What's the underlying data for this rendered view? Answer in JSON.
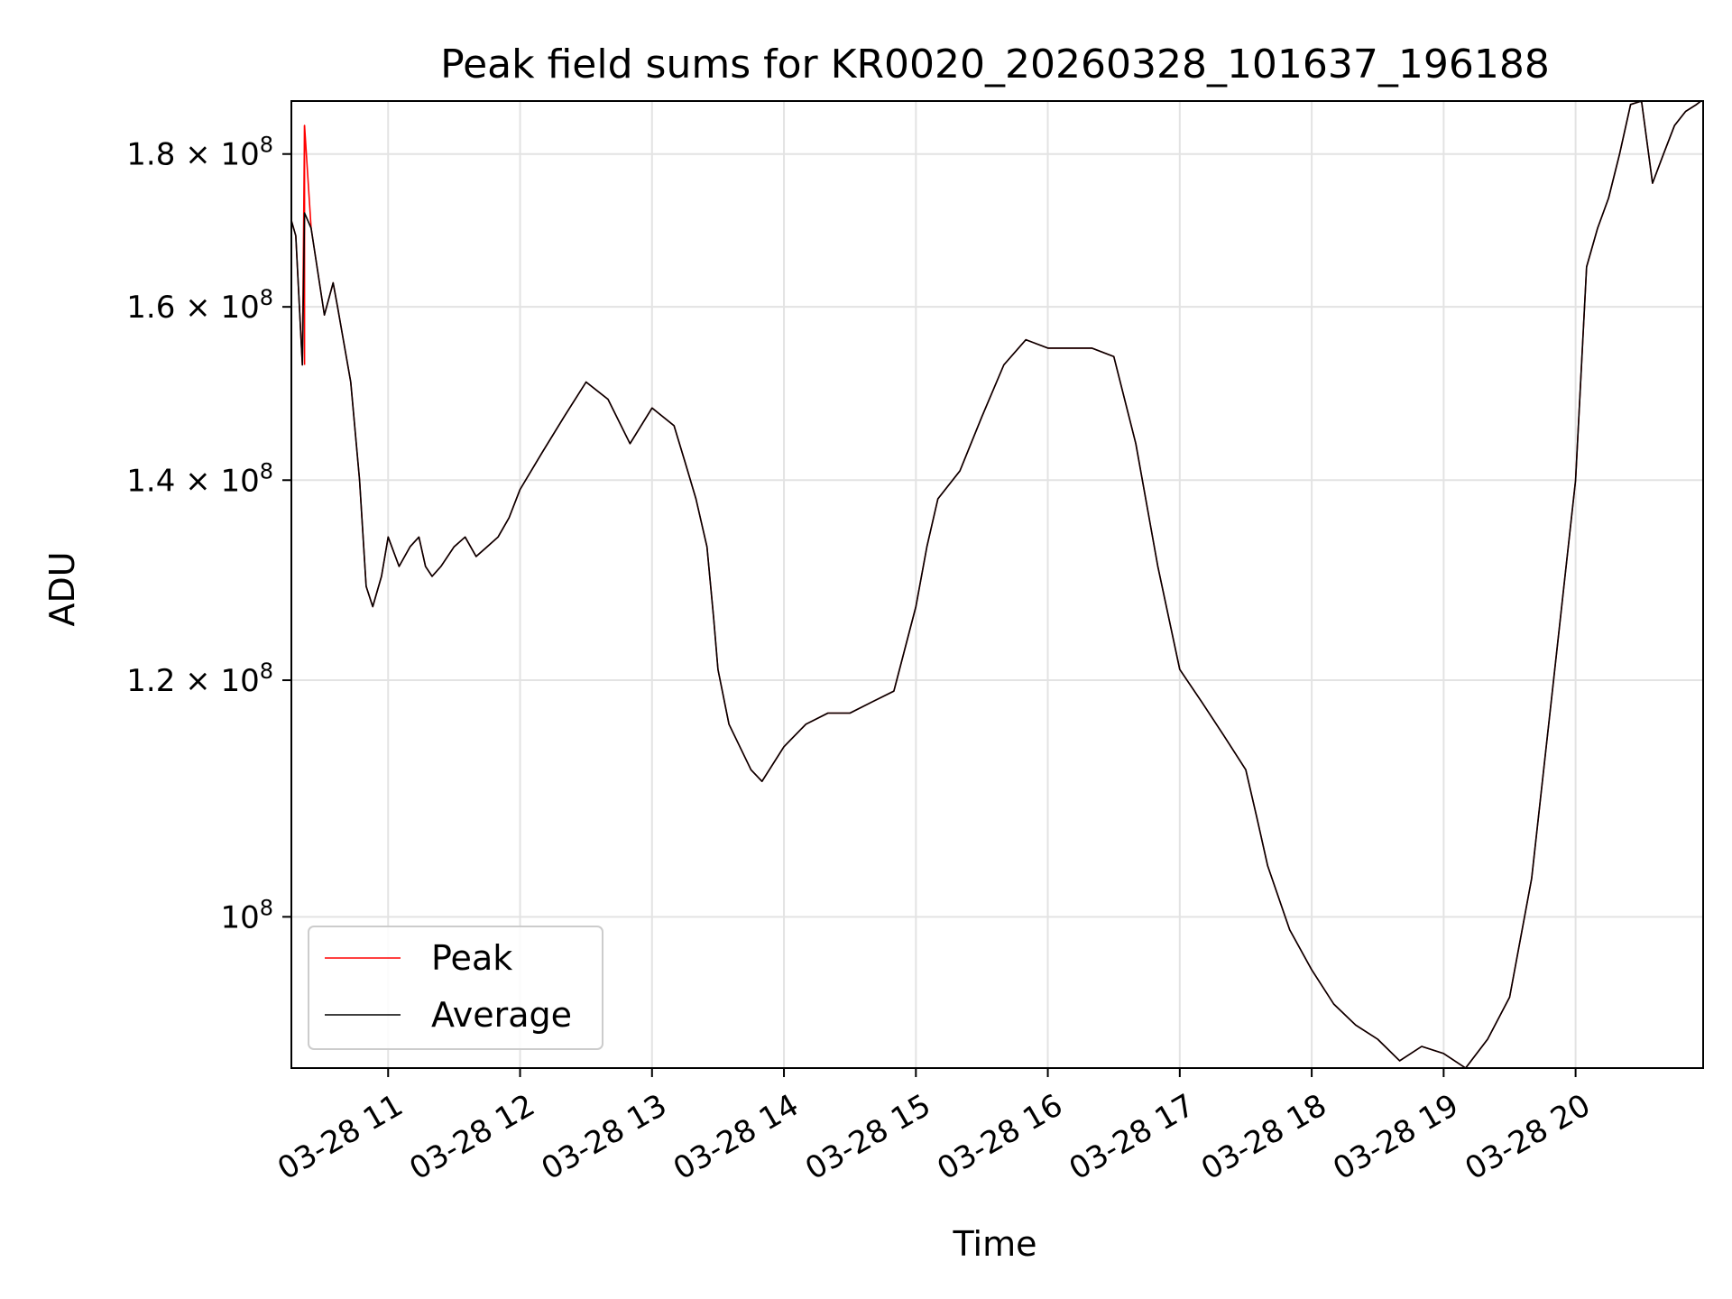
{
  "chart_data": {
    "type": "line",
    "title": "Peak field sums for KR0020_20260328_101637_196188",
    "xlabel": "Time",
    "ylabel": "ADU",
    "x_axis": {
      "kind": "time",
      "range": [
        "2026-03-28 10:16",
        "2026-03-28 20:58"
      ],
      "tick_labels": [
        "03-28 11",
        "03-28 12",
        "03-28 13",
        "03-28 14",
        "03-28 15",
        "03-28 16",
        "03-28 17",
        "03-28 18",
        "03-28 19",
        "03-28 20"
      ]
    },
    "y_axis": {
      "scale": "log",
      "range": [
        89000000,
        187500000
      ],
      "tick_labels": [
        "1.2 × 10^8",
        "1.4 × 10^8",
        "1.6 × 10^8",
        "1.8 × 10^8",
        "10^8"
      ]
    },
    "grid": true,
    "legend": {
      "placement": "lower-left",
      "entries": [
        "Peak",
        "Average"
      ]
    },
    "series": [
      {
        "name": "Peak",
        "color": "#ff0000",
        "x": [
          "2026-03-28 10:16",
          "2026-03-28 10:18",
          "2026-03-28 10:21",
          "2026-03-28 10:22",
          "2026-03-28 10:25",
          "2026-03-28 10:31",
          "2026-03-28 10:35",
          "2026-03-28 10:37",
          "2026-03-28 10:43",
          "2026-03-28 10:47",
          "2026-03-28 10:50",
          "2026-03-28 10:53",
          "2026-03-28 10:57",
          "2026-03-28 11:00",
          "2026-03-28 11:05",
          "2026-03-28 11:10",
          "2026-03-28 11:14",
          "2026-03-28 11:17",
          "2026-03-28 11:20",
          "2026-03-28 11:24",
          "2026-03-28 11:30",
          "2026-03-28 11:35",
          "2026-03-28 11:40",
          "2026-03-28 11:45",
          "2026-03-28 11:50",
          "2026-03-28 11:55",
          "2026-03-28 12:00",
          "2026-03-28 12:10",
          "2026-03-28 12:20",
          "2026-03-28 12:30",
          "2026-03-28 12:40",
          "2026-03-28 12:50",
          "2026-03-28 13:00",
          "2026-03-28 13:10",
          "2026-03-28 13:15",
          "2026-03-28 13:20",
          "2026-03-28 13:25",
          "2026-03-28 13:28",
          "2026-03-28 13:30",
          "2026-03-28 13:35",
          "2026-03-28 13:45",
          "2026-03-28 13:50",
          "2026-03-28 14:00",
          "2026-03-28 14:10",
          "2026-03-28 14:20",
          "2026-03-28 14:30",
          "2026-03-28 14:40",
          "2026-03-28 14:50",
          "2026-03-28 15:00",
          "2026-03-28 15:05",
          "2026-03-28 15:10",
          "2026-03-28 15:20",
          "2026-03-28 15:30",
          "2026-03-28 15:40",
          "2026-03-28 15:50",
          "2026-03-28 16:00",
          "2026-03-28 16:10",
          "2026-03-28 16:20",
          "2026-03-28 16:30",
          "2026-03-28 16:40",
          "2026-03-28 16:50",
          "2026-03-28 17:00",
          "2026-03-28 17:10",
          "2026-03-28 17:20",
          "2026-03-28 17:30",
          "2026-03-28 17:35",
          "2026-03-28 17:40",
          "2026-03-28 17:50",
          "2026-03-28 18:00",
          "2026-03-28 18:10",
          "2026-03-28 18:20",
          "2026-03-28 18:30",
          "2026-03-28 18:40",
          "2026-03-28 18:50",
          "2026-03-28 19:00",
          "2026-03-28 19:10",
          "2026-03-28 19:20",
          "2026-03-28 19:30",
          "2026-03-28 19:40",
          "2026-03-28 19:50",
          "2026-03-28 20:00",
          "2026-03-28 20:05",
          "2026-03-28 20:10",
          "2026-03-28 20:15",
          "2026-03-28 20:20",
          "2026-03-28 20:25",
          "2026-03-28 20:30",
          "2026-03-28 20:35",
          "2026-03-28 20:40",
          "2026-03-28 20:45",
          "2026-03-28 20:50",
          "2026-03-28 20:55",
          "2026-03-28 20:57"
        ],
        "y": [
          171000000,
          169000000,
          153000000,
          184000000,
          170000000,
          159000000,
          163000000,
          160000000,
          151000000,
          140000000,
          129000000,
          127000000,
          130000000,
          134000000,
          131000000,
          133000000,
          134000000,
          131000000,
          130000000,
          131000000,
          133000000,
          134000000,
          132000000,
          133000000,
          134000000,
          136000000,
          139000000,
          143000000,
          147000000,
          151000000,
          149000000,
          144000000,
          148000000,
          146000000,
          142000000,
          138000000,
          133000000,
          126000000,
          121000000,
          116000000,
          112000000,
          111000000,
          114000000,
          116000000,
          117000000,
          117000000,
          118000000,
          119000000,
          127000000,
          133000000,
          138000000,
          141000000,
          147000000,
          153000000,
          156000000,
          155000000,
          155000000,
          155000000,
          154000000,
          144000000,
          131000000,
          121000000,
          118000000,
          115000000,
          112000000,
          108000000,
          104000000,
          99000000,
          96000000,
          93500000,
          92000000,
          91000000,
          89500000,
          90500000,
          90000000,
          89000000,
          91000000,
          94000000,
          103000000,
          120000000,
          140000000,
          165000000,
          170000000,
          174000000,
          180000000,
          187000000,
          187500000,
          176000000,
          180000000,
          184000000,
          186000000,
          187000000,
          187500000
        ],
        "highlight": {
          "x": "2026-03-28 10:22",
          "y": 184000000
        }
      },
      {
        "name": "Average",
        "color": "#000000",
        "x": [
          "2026-03-28 10:16",
          "2026-03-28 10:18",
          "2026-03-28 10:21",
          "2026-03-28 10:22",
          "2026-03-28 10:25",
          "2026-03-28 10:31",
          "2026-03-28 10:35",
          "2026-03-28 10:37",
          "2026-03-28 10:43",
          "2026-03-28 10:47",
          "2026-03-28 10:50",
          "2026-03-28 10:53",
          "2026-03-28 10:57",
          "2026-03-28 11:00",
          "2026-03-28 11:05",
          "2026-03-28 11:10",
          "2026-03-28 11:14",
          "2026-03-28 11:17",
          "2026-03-28 11:20",
          "2026-03-28 11:24",
          "2026-03-28 11:30",
          "2026-03-28 11:35",
          "2026-03-28 11:40",
          "2026-03-28 11:45",
          "2026-03-28 11:50",
          "2026-03-28 11:55",
          "2026-03-28 12:00",
          "2026-03-28 12:10",
          "2026-03-28 12:20",
          "2026-03-28 12:30",
          "2026-03-28 12:40",
          "2026-03-28 12:50",
          "2026-03-28 13:00",
          "2026-03-28 13:10",
          "2026-03-28 13:15",
          "2026-03-28 13:20",
          "2026-03-28 13:25",
          "2026-03-28 13:28",
          "2026-03-28 13:30",
          "2026-03-28 13:35",
          "2026-03-28 13:45",
          "2026-03-28 13:50",
          "2026-03-28 14:00",
          "2026-03-28 14:10",
          "2026-03-28 14:20",
          "2026-03-28 14:30",
          "2026-03-28 14:40",
          "2026-03-28 14:50",
          "2026-03-28 15:00",
          "2026-03-28 15:05",
          "2026-03-28 15:10",
          "2026-03-28 15:20",
          "2026-03-28 15:30",
          "2026-03-28 15:40",
          "2026-03-28 15:50",
          "2026-03-28 16:00",
          "2026-03-28 16:10",
          "2026-03-28 16:20",
          "2026-03-28 16:30",
          "2026-03-28 16:40",
          "2026-03-28 16:50",
          "2026-03-28 17:00",
          "2026-03-28 17:10",
          "2026-03-28 17:20",
          "2026-03-28 17:30",
          "2026-03-28 17:35",
          "2026-03-28 17:40",
          "2026-03-28 17:50",
          "2026-03-28 18:00",
          "2026-03-28 18:10",
          "2026-03-28 18:20",
          "2026-03-28 18:30",
          "2026-03-28 18:40",
          "2026-03-28 18:50",
          "2026-03-28 19:00",
          "2026-03-28 19:10",
          "2026-03-28 19:20",
          "2026-03-28 19:30",
          "2026-03-28 19:40",
          "2026-03-28 19:50",
          "2026-03-28 20:00",
          "2026-03-28 20:05",
          "2026-03-28 20:10",
          "2026-03-28 20:15",
          "2026-03-28 20:20",
          "2026-03-28 20:25",
          "2026-03-28 20:30",
          "2026-03-28 20:35",
          "2026-03-28 20:40",
          "2026-03-28 20:45",
          "2026-03-28 20:50",
          "2026-03-28 20:55",
          "2026-03-28 20:57"
        ],
        "y": [
          171000000,
          169000000,
          153000000,
          172000000,
          170000000,
          159000000,
          163000000,
          160000000,
          151000000,
          140000000,
          129000000,
          127000000,
          130000000,
          134000000,
          131000000,
          133000000,
          134000000,
          131000000,
          130000000,
          131000000,
          133000000,
          134000000,
          132000000,
          133000000,
          134000000,
          136000000,
          139000000,
          143000000,
          147000000,
          151000000,
          149000000,
          144000000,
          148000000,
          146000000,
          142000000,
          138000000,
          133000000,
          126000000,
          121000000,
          116000000,
          112000000,
          111000000,
          114000000,
          116000000,
          117000000,
          117000000,
          118000000,
          119000000,
          127000000,
          133000000,
          138000000,
          141000000,
          147000000,
          153000000,
          156000000,
          155000000,
          155000000,
          155000000,
          154000000,
          144000000,
          131000000,
          121000000,
          118000000,
          115000000,
          112000000,
          108000000,
          104000000,
          99000000,
          96000000,
          93500000,
          92000000,
          91000000,
          89500000,
          90500000,
          90000000,
          89000000,
          91000000,
          94000000,
          103000000,
          120000000,
          140000000,
          165000000,
          170000000,
          174000000,
          180000000,
          187000000,
          187500000,
          176000000,
          180000000,
          184000000,
          186000000,
          187000000,
          187500000
        ]
      }
    ]
  }
}
